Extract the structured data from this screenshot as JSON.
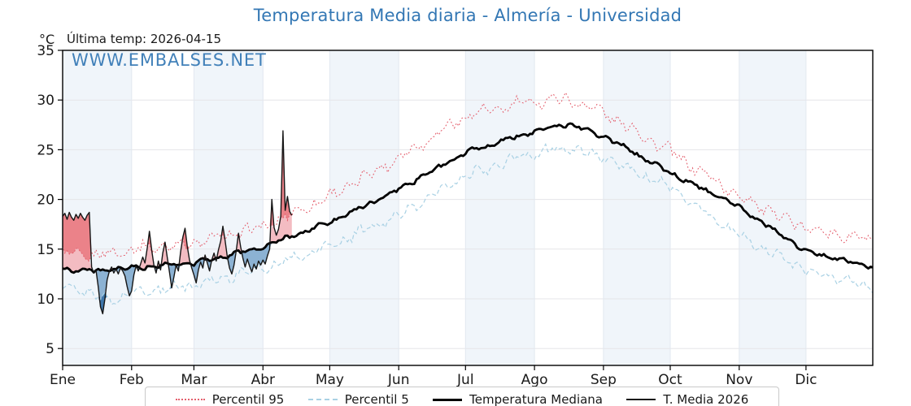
{
  "colors": {
    "accent_blue": "#3377b4",
    "month_band": "#f0f5fa",
    "grid_h": "#e5e5e8",
    "grid_v": "#e2e8f0",
    "frame": "#000000"
  },
  "header": {
    "title": "Temperatura Media diaria - Almería - Universidad",
    "unit_label": "°C",
    "last_temp_label": "Última temp: 2026-04-15",
    "watermark": "WWW.EMBALSES.NET"
  },
  "legend": {
    "items": [
      {
        "label": "Percentil 95",
        "style": "dotted",
        "color": "#e4606e"
      },
      {
        "label": "Percentil 5",
        "style": "dashed",
        "color": "#a9d1e4"
      },
      {
        "label": "Temperatura Mediana",
        "style": "solid-thick",
        "color": "#000000"
      },
      {
        "label": "T. Media 2026",
        "style": "solid-thin",
        "color": "#1a1a1a"
      }
    ]
  },
  "chart_data": {
    "type": "line",
    "title": "Temperatura Media diaria - Almería - Universidad",
    "ylabel": "°C",
    "ylim": [
      3.3,
      35
    ],
    "y_ticks": [
      5,
      10,
      15,
      20,
      25,
      30,
      35
    ],
    "x_tick_labels": [
      "Ene",
      "Feb",
      "Mar",
      "Abr",
      "May",
      "Jun",
      "Jul",
      "Ago",
      "Sep",
      "Oct",
      "Nov",
      "Dic"
    ],
    "month_lengths": [
      31,
      28,
      31,
      30,
      31,
      30,
      31,
      31,
      30,
      31,
      30,
      31
    ],
    "banding": "alternate month shading, shaded starting with Ene",
    "grid": true,
    "legend_position": "bottom",
    "annotations": {
      "last_temp": "Última temp: 2026-04-15",
      "watermark": "WWW.EMBALSES.NET"
    },
    "series": [
      {
        "key": "p95",
        "name": "Percentil 95",
        "style": "dotted",
        "color": "#e4606e",
        "width": 1.1,
        "anchor_days": [
          0,
          15,
          31,
          59,
          90,
          120,
          151,
          181,
          212,
          227,
          243,
          273,
          304,
          334,
          364
        ],
        "anchor_values": [
          14.6,
          14.3,
          15.0,
          15.6,
          17.2,
          20.3,
          24.2,
          28.4,
          29.9,
          30.1,
          28.8,
          24.8,
          20.3,
          17.1,
          15.8
        ],
        "jitter": 0.7,
        "seed": 1
      },
      {
        "key": "p5",
        "name": "Percentil 5",
        "style": "dashed",
        "color": "#a9d1e4",
        "width": 1.2,
        "anchor_days": [
          0,
          14,
          22,
          31,
          59,
          90,
          120,
          151,
          181,
          212,
          227,
          243,
          273,
          304,
          334,
          364
        ],
        "anchor_values": [
          11.4,
          10.4,
          9.8,
          10.6,
          11.4,
          13.1,
          15.3,
          18.4,
          22.3,
          24.7,
          25.2,
          24.2,
          21.2,
          16.3,
          12.9,
          11.1
        ],
        "jitter": 0.6,
        "seed": 2
      },
      {
        "key": "median",
        "name": "Temperatura Mediana",
        "style": "solid",
        "color": "#000000",
        "width": 2.8,
        "anchor_days": [
          0,
          15,
          31,
          59,
          90,
          120,
          151,
          181,
          212,
          227,
          243,
          273,
          304,
          334,
          364
        ],
        "anchor_values": [
          13.0,
          12.8,
          13.1,
          13.6,
          15.2,
          17.7,
          21.0,
          24.7,
          26.9,
          27.6,
          26.4,
          22.7,
          19.2,
          14.8,
          13.2
        ],
        "jitter": 0.25,
        "seed": 3
      },
      {
        "key": "t2026",
        "name": "T. Media 2026",
        "style": "solid",
        "color": "#161616",
        "width": 1.4,
        "start_day": 0,
        "daily_values": [
          18.3,
          18.6,
          18.0,
          18.7,
          18.2,
          17.9,
          18.5,
          18.1,
          18.6,
          18.2,
          17.9,
          18.4,
          18.7,
          13.2,
          12.6,
          12.9,
          11.2,
          9.2,
          8.5,
          10.0,
          11.9,
          12.8,
          13.2,
          12.6,
          13.0,
          12.5,
          13.1,
          12.8,
          12.3,
          11.2,
          10.3,
          10.8,
          12.4,
          13.3,
          12.8,
          13.5,
          14.2,
          13.6,
          15.1,
          16.8,
          14.9,
          13.4,
          12.6,
          13.8,
          12.9,
          14.6,
          15.7,
          14.2,
          12.7,
          11.1,
          12.2,
          13.4,
          12.8,
          14.7,
          16.2,
          17.1,
          15.3,
          13.9,
          13.1,
          12.4,
          11.6,
          12.9,
          13.7,
          13.1,
          14.4,
          13.6,
          12.8,
          13.9,
          14.6,
          13.8,
          14.9,
          15.8,
          17.3,
          15.9,
          14.2,
          13.1,
          12.5,
          13.4,
          14.8,
          16.6,
          15.2,
          14.1,
          13.2,
          14.0,
          13.3,
          12.7,
          13.5,
          13.0,
          13.8,
          13.4,
          13.9,
          13.5,
          14.3,
          15.0,
          20.0,
          17.2,
          16.4,
          17.0,
          18.3,
          26.9,
          18.9,
          20.3,
          18.8,
          18.4
        ]
      }
    ],
    "fills": {
      "above_median_below_p95": "#f3bcc2",
      "above_p95": "#eb8289",
      "below_median_above_p5": "#8cb2d3",
      "below_p5": "#3e76ab",
      "description": "T. Media 2026 vs climatology: red shading where 2026 is above the median (darker above Percentil 95), blue where below the median (darker below Percentil 5)"
    }
  }
}
